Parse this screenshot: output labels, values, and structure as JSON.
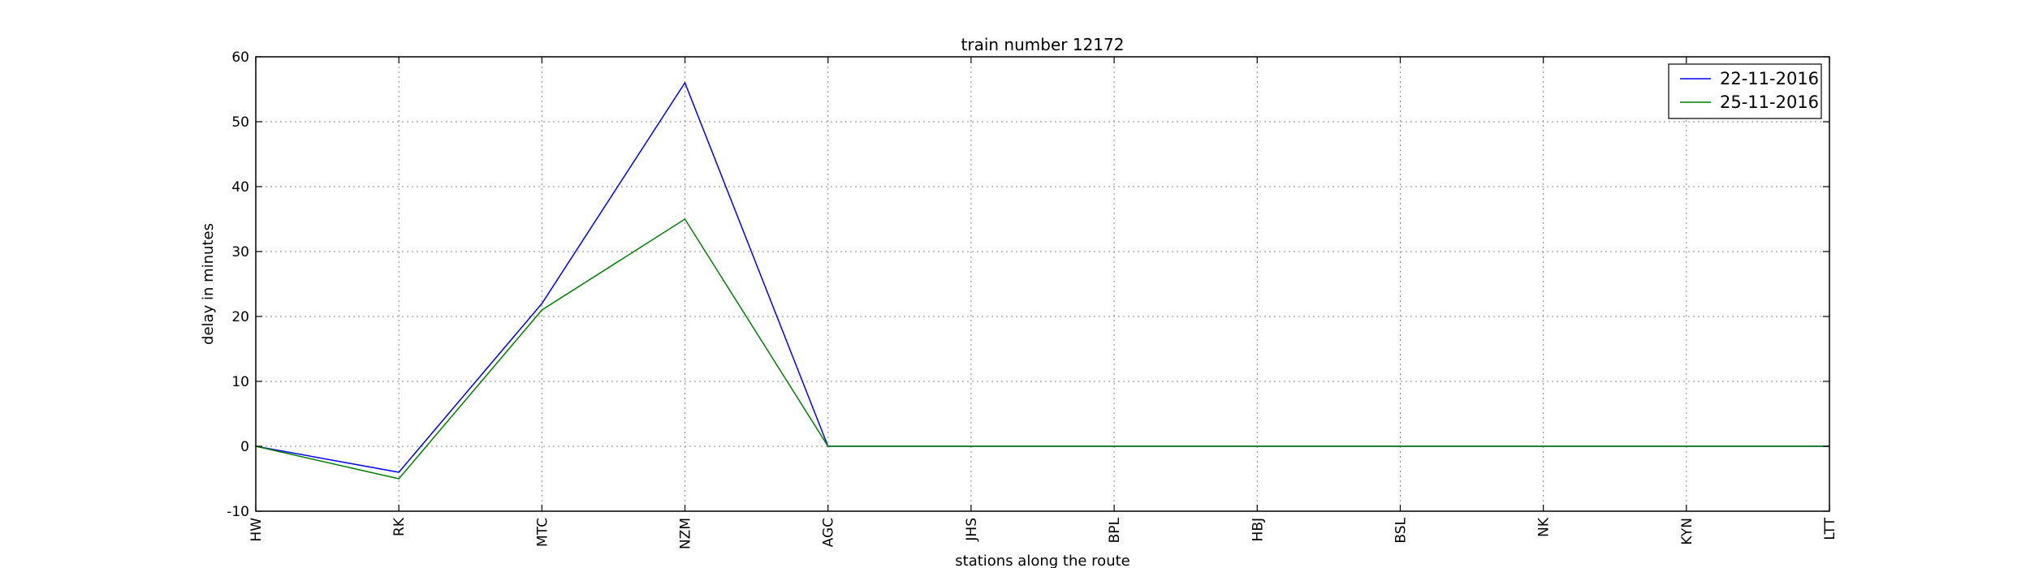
{
  "chart_data": {
    "type": "line",
    "title": "train number 12172",
    "xlabel": "stations along the route",
    "ylabel": "delay in minutes",
    "categories": [
      "HW",
      "RK",
      "MTC",
      "NZM",
      "AGC",
      "JHS",
      "BPL",
      "HBJ",
      "BSL",
      "NK",
      "KYN",
      "LTT"
    ],
    "ylim": [
      -10,
      60
    ],
    "yticks": [
      -10,
      0,
      10,
      20,
      30,
      40,
      50,
      60
    ],
    "grid": true,
    "legend_position": "top-right",
    "series": [
      {
        "name": "22-11-2016",
        "color": "#0000ff",
        "values": [
          0,
          -4,
          22,
          56,
          0,
          0,
          0,
          0,
          0,
          0,
          0,
          0
        ]
      },
      {
        "name": "25-11-2016",
        "color": "#008000",
        "values": [
          0,
          -5,
          21,
          35,
          0,
          0,
          0,
          0,
          0,
          0,
          0,
          0
        ]
      }
    ]
  }
}
